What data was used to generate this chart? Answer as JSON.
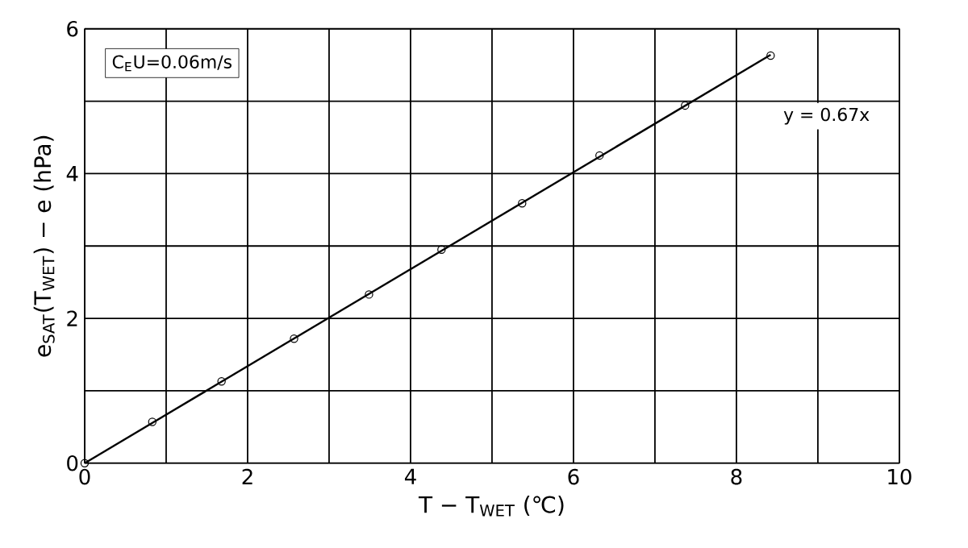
{
  "chart_data": {
    "type": "scatter",
    "xlabel": "T − T$_{WET}$   (℃)",
    "ylabel": "e$_{SAT}$(T$_{WET}$) − e   (hPa)",
    "xlim": [
      0,
      10
    ],
    "ylim": [
      0,
      6
    ],
    "xticks": [
      0,
      {
        "value": 1,
        "label": null
      },
      2,
      {
        "value": 3,
        "label": null
      },
      4,
      {
        "value": 5,
        "label": null
      },
      6,
      {
        "value": 7,
        "label": null
      },
      8,
      {
        "value": 9,
        "label": null
      },
      10
    ],
    "yticks": [
      0,
      {
        "value": 1,
        "label": null
      },
      2,
      {
        "value": 3,
        "label": null
      },
      4,
      {
        "value": 5,
        "label": null
      },
      6
    ],
    "grid": true,
    "series": [
      {
        "color": "#000000",
        "marker": "circle",
        "x": [
          0,
          0.83,
          1.68,
          2.57,
          3.49,
          4.38,
          5.37,
          6.32,
          7.37,
          8.42
        ],
        "values": [
          0,
          0.57,
          1.13,
          1.72,
          2.33,
          2.95,
          3.59,
          4.25,
          4.94,
          5.63
        ]
      },
      {
        "type": "line",
        "color": "#000000",
        "marker": "none",
        "line_style": "solid",
        "x": [
          0,
          8.42
        ],
        "values": [
          0,
          5.64
        ]
      }
    ],
    "annotations": [
      {
        "text": "C$_{E}$U=0.06m/s"
      },
      {
        "text": "y = 0.67x"
      }
    ]
  }
}
